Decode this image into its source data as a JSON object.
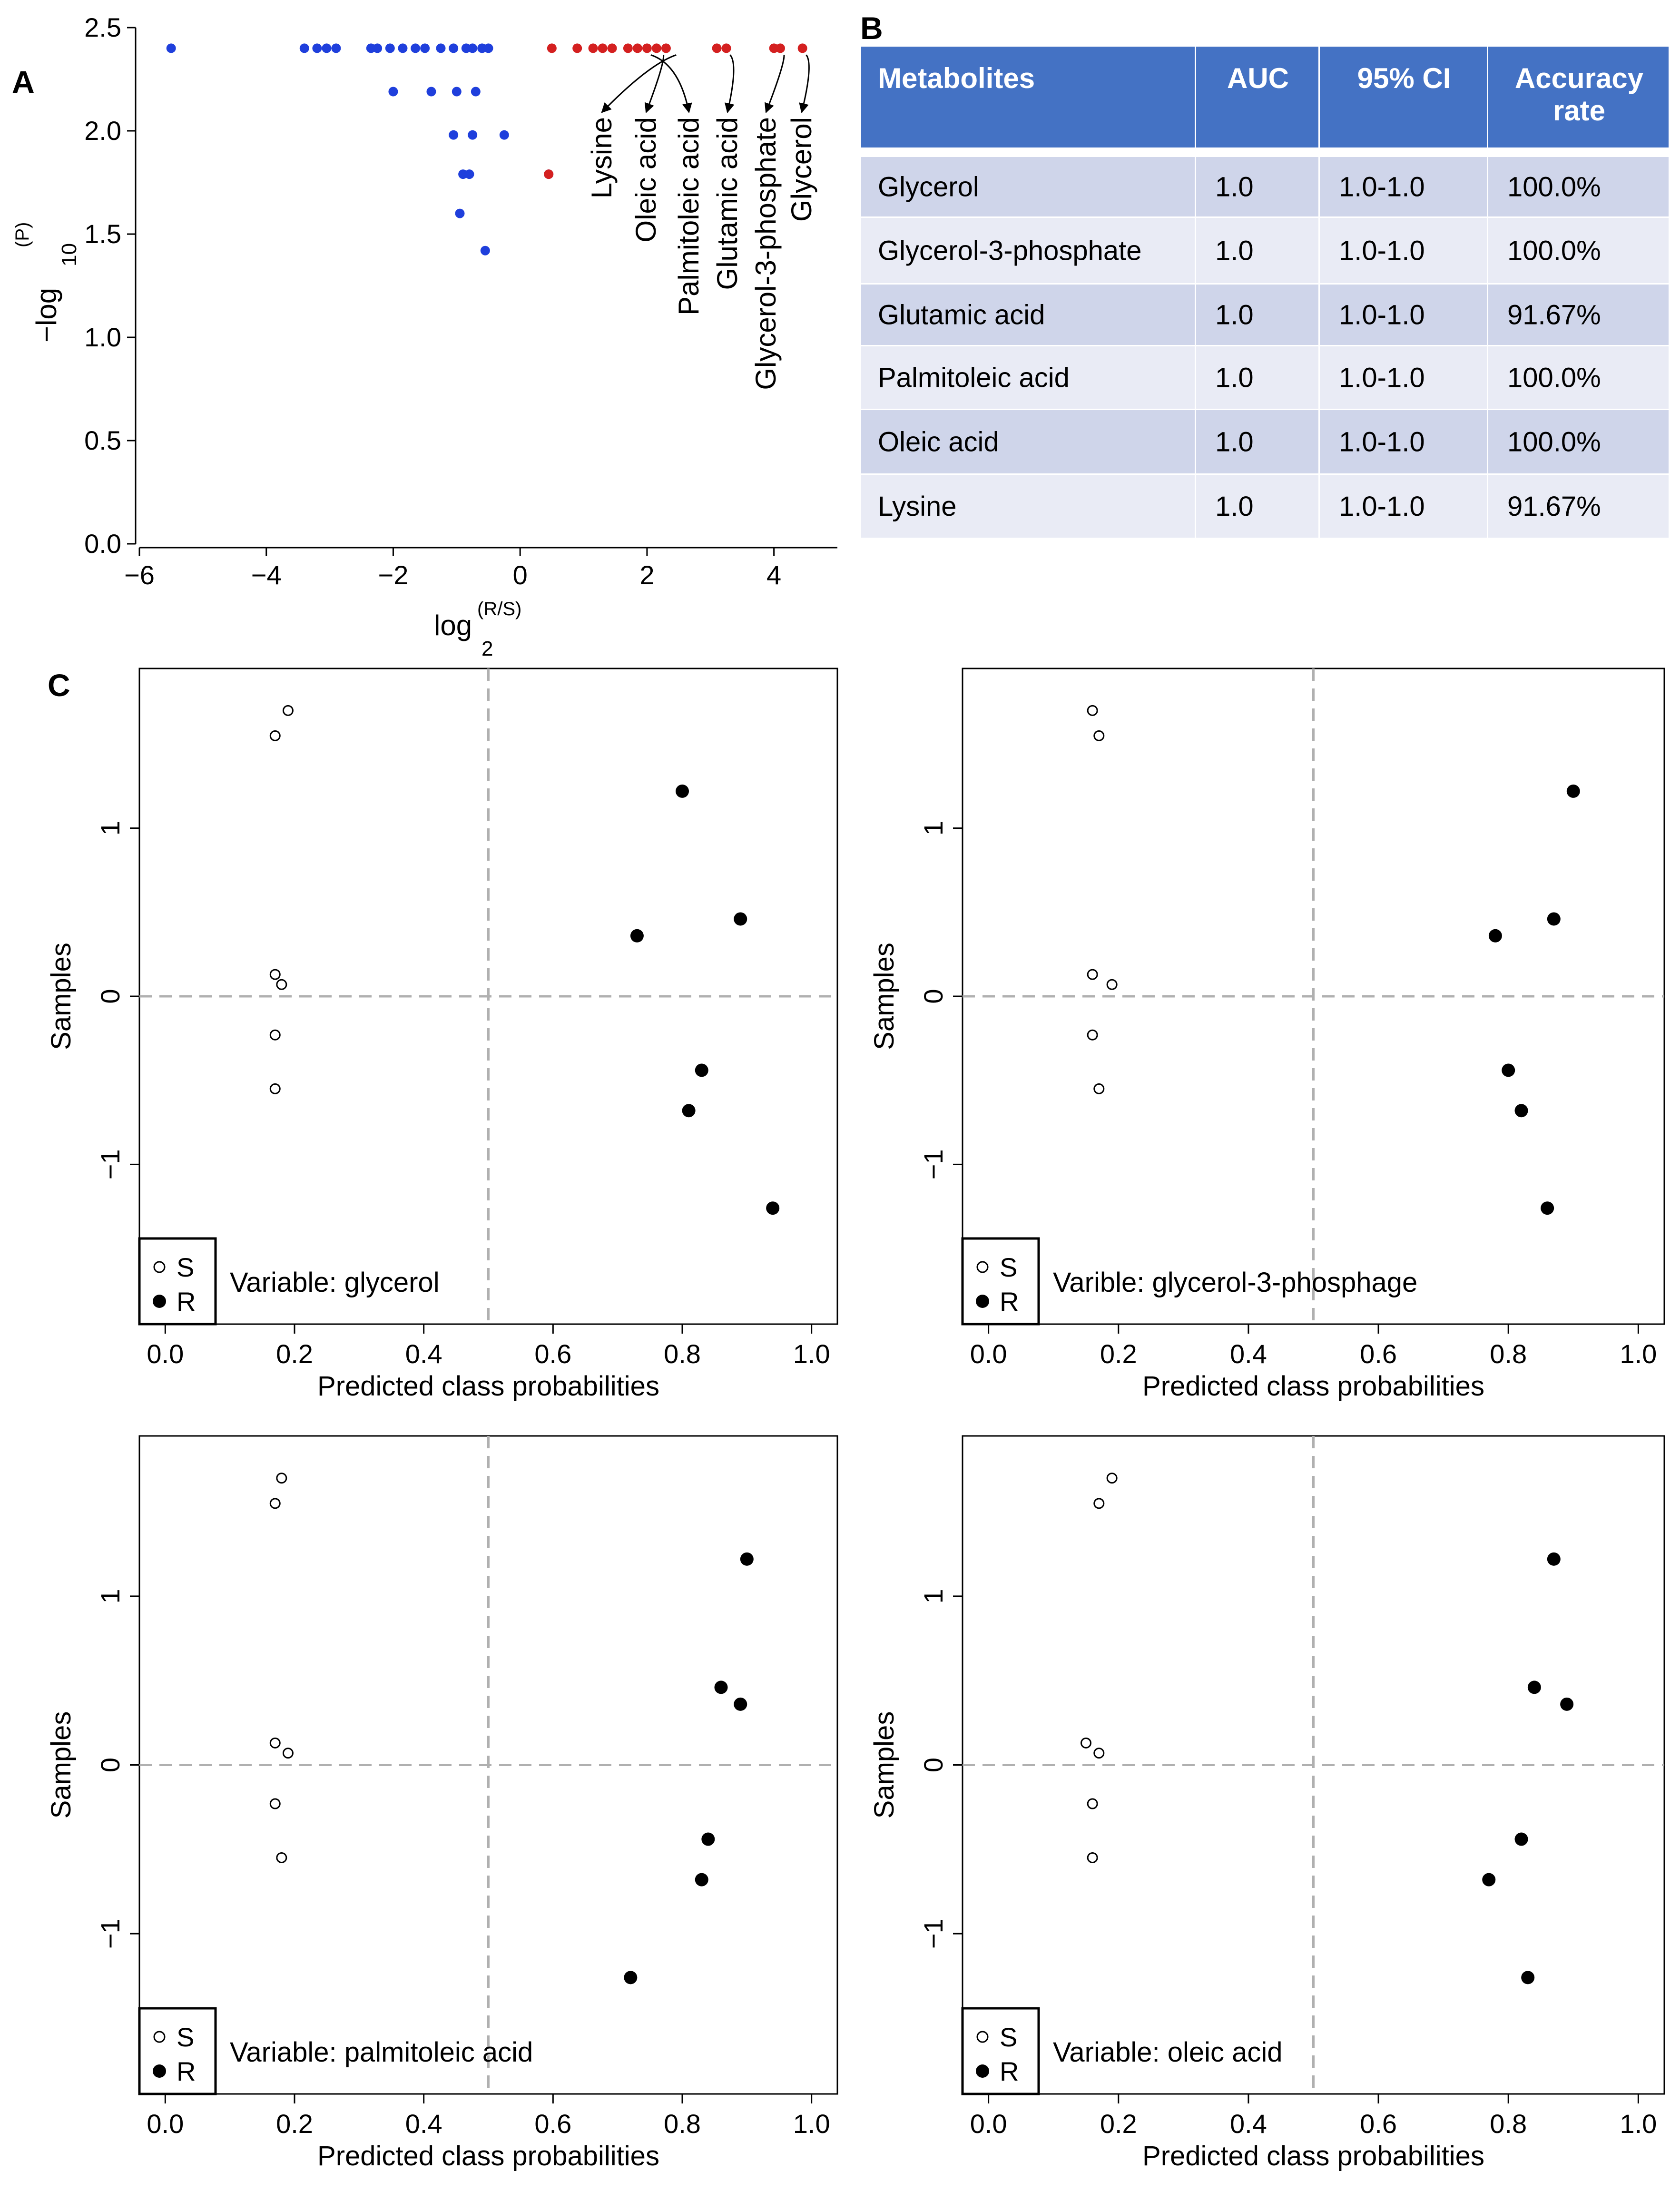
{
  "panel_labels": {
    "a": "A",
    "b": "B",
    "c": "C"
  },
  "chart_data": [
    {
      "id": "volcano",
      "type": "scatter",
      "title": "",
      "xlabel_main": "log",
      "xlabel_sub": "2",
      "xlabel_sup": "(R/S)",
      "ylabel_main": "−log",
      "ylabel_sub": "10",
      "ylabel_sup": "(P)",
      "xlim": [
        -6,
        5
      ],
      "ylim": [
        0,
        2.5
      ],
      "x_ticks": [
        -6,
        -4,
        -2,
        0,
        2,
        4
      ],
      "x_tick_labels": [
        "−6",
        "−4",
        "−2",
        "0",
        "2",
        "4"
      ],
      "y_ticks": [
        0,
        0.5,
        1.0,
        1.5,
        2.0,
        2.5
      ],
      "y_tick_labels": [
        "0.0",
        "0.5",
        "1.0",
        "1.5",
        "2.0",
        "2.5"
      ],
      "colors": {
        "down": "#1f3fdc",
        "up": "#d42020"
      },
      "series": [
        {
          "name": "down",
          "color": "#1f3fdc",
          "points": [
            [
              -5.5,
              2.4
            ],
            [
              -3.4,
              2.4
            ],
            [
              -3.2,
              2.4
            ],
            [
              -3.05,
              2.4
            ],
            [
              -2.9,
              2.4
            ],
            [
              -2.35,
              2.4
            ],
            [
              -2.25,
              2.4
            ],
            [
              -2.05,
              2.4
            ],
            [
              -1.85,
              2.4
            ],
            [
              -1.65,
              2.4
            ],
            [
              -1.5,
              2.4
            ],
            [
              -1.25,
              2.4
            ],
            [
              -1.05,
              2.4
            ],
            [
              -0.85,
              2.4
            ],
            [
              -0.75,
              2.4
            ],
            [
              -0.6,
              2.4
            ],
            [
              -0.5,
              2.4
            ],
            [
              -2.0,
              2.19
            ],
            [
              -1.4,
              2.19
            ],
            [
              -1.0,
              2.19
            ],
            [
              -0.7,
              2.19
            ],
            [
              -1.05,
              1.98
            ],
            [
              -0.75,
              1.98
            ],
            [
              -0.25,
              1.98
            ],
            [
              -0.9,
              1.79
            ],
            [
              -0.8,
              1.79
            ],
            [
              0.45,
              1.79
            ],
            [
              -0.95,
              1.6
            ],
            [
              -0.55,
              1.42
            ]
          ]
        },
        {
          "name": "up",
          "color": "#d42020",
          "points": [
            [
              0.5,
              2.4
            ],
            [
              0.9,
              2.4
            ],
            [
              1.15,
              2.4
            ],
            [
              1.3,
              2.4
            ],
            [
              1.45,
              2.4
            ],
            [
              1.7,
              2.4
            ],
            [
              1.85,
              2.4
            ],
            [
              2.0,
              2.4
            ],
            [
              2.15,
              2.4
            ],
            [
              2.3,
              2.4
            ],
            [
              3.1,
              2.4
            ],
            [
              3.25,
              2.4
            ],
            [
              4.0,
              2.4
            ],
            [
              4.1,
              2.4
            ],
            [
              4.45,
              2.4
            ],
            [
              0.45,
              1.79
            ]
          ]
        }
      ],
      "annotations": [
        {
          "text": "Lysine",
          "x": 2.4
        },
        {
          "text": "Oleic acid",
          "x": 2.2
        },
        {
          "text": "Palmitoleic acid",
          "x": 2.0
        },
        {
          "text": "Glutamic acid",
          "x": 3.25
        },
        {
          "text": "Glycerol-3-phosphate",
          "x": 4.1
        },
        {
          "text": "Glycerol",
          "x": 4.45
        }
      ]
    },
    {
      "id": "auc-table",
      "type": "table",
      "columns": [
        "Metabolites",
        "AUC",
        "95% CI",
        "Accuracy rate"
      ],
      "header_line1": [
        "Metabolites",
        "AUC",
        "95% CI",
        "Accuracy"
      ],
      "header_line2": [
        "",
        "",
        "",
        "rate"
      ],
      "rows": [
        [
          "Glycerol",
          "1.0",
          "1.0-1.0",
          "100.0%"
        ],
        [
          "Glycerol-3-phosphate",
          "1.0",
          "1.0-1.0",
          "100.0%"
        ],
        [
          "Glutamic acid",
          "1.0",
          "1.0-1.0",
          "91.67%"
        ],
        [
          "Palmitoleic acid",
          "1.0",
          "1.0-1.0",
          "100.0%"
        ],
        [
          "Oleic acid",
          "1.0",
          "1.0-1.0",
          "100.0%"
        ],
        [
          "Lysine",
          "1.0",
          "1.0-1.0",
          "91.67%"
        ]
      ],
      "colors": {
        "header": "#4472c4",
        "row_dark": "#cfd5ea",
        "row_light": "#e9ebf5"
      }
    },
    {
      "id": "prob-glycerol",
      "type": "scatter",
      "xlabel": "Predicted class probabilities",
      "ylabel": "Samples",
      "xlim": [
        -0.04,
        1.04
      ],
      "ylim": [
        -1.95,
        1.95
      ],
      "x_ticks": [
        0.0,
        0.2,
        0.4,
        0.6,
        0.8,
        1.0
      ],
      "x_tick_labels": [
        "0.0",
        "0.2",
        "0.4",
        "0.6",
        "0.8",
        "1.0"
      ],
      "y_ticks": [
        -1,
        0,
        1
      ],
      "y_tick_labels": [
        "−1",
        "0",
        "1"
      ],
      "vline": 0.5,
      "hline": 0,
      "legend": {
        "s_label": "S",
        "r_label": "R",
        "variable_text": "Variable: glycerol"
      },
      "series": [
        {
          "name": "S",
          "filled": false,
          "points": [
            [
              0.19,
              1.7
            ],
            [
              0.17,
              1.55
            ],
            [
              0.17,
              0.13
            ],
            [
              0.18,
              0.07
            ],
            [
              0.17,
              -0.23
            ],
            [
              0.17,
              -0.55
            ]
          ]
        },
        {
          "name": "R",
          "filled": true,
          "points": [
            [
              0.8,
              1.22
            ],
            [
              0.89,
              0.46
            ],
            [
              0.73,
              0.36
            ],
            [
              0.83,
              -0.44
            ],
            [
              0.81,
              -0.68
            ],
            [
              0.94,
              -1.26
            ]
          ]
        }
      ]
    },
    {
      "id": "prob-glycerol-3-phosphate",
      "type": "scatter",
      "xlabel": "Predicted class probabilities",
      "ylabel": "Samples",
      "xlim": [
        -0.04,
        1.04
      ],
      "ylim": [
        -1.95,
        1.95
      ],
      "x_ticks": [
        0.0,
        0.2,
        0.4,
        0.6,
        0.8,
        1.0
      ],
      "x_tick_labels": [
        "0.0",
        "0.2",
        "0.4",
        "0.6",
        "0.8",
        "1.0"
      ],
      "y_ticks": [
        -1,
        0,
        1
      ],
      "y_tick_labels": [
        "−1",
        "0",
        "1"
      ],
      "vline": 0.5,
      "hline": 0,
      "legend": {
        "s_label": "S",
        "r_label": "R",
        "variable_text": "Varible: glycerol-3-phosphage"
      },
      "series": [
        {
          "name": "S",
          "filled": false,
          "points": [
            [
              0.16,
              1.7
            ],
            [
              0.17,
              1.55
            ],
            [
              0.16,
              0.13
            ],
            [
              0.19,
              0.07
            ],
            [
              0.16,
              -0.23
            ],
            [
              0.17,
              -0.55
            ]
          ]
        },
        {
          "name": "R",
          "filled": true,
          "points": [
            [
              0.9,
              1.22
            ],
            [
              0.87,
              0.46
            ],
            [
              0.78,
              0.36
            ],
            [
              0.8,
              -0.44
            ],
            [
              0.82,
              -0.68
            ],
            [
              0.86,
              -1.26
            ]
          ]
        }
      ]
    },
    {
      "id": "prob-palmitoleic",
      "type": "scatter",
      "xlabel": "Predicted class probabilities",
      "ylabel": "Samples",
      "xlim": [
        -0.04,
        1.04
      ],
      "ylim": [
        -1.95,
        1.95
      ],
      "x_ticks": [
        0.0,
        0.2,
        0.4,
        0.6,
        0.8,
        1.0
      ],
      "x_tick_labels": [
        "0.0",
        "0.2",
        "0.4",
        "0.6",
        "0.8",
        "1.0"
      ],
      "y_ticks": [
        -1,
        0,
        1
      ],
      "y_tick_labels": [
        "−1",
        "0",
        "1"
      ],
      "vline": 0.5,
      "hline": 0,
      "legend": {
        "s_label": "S",
        "r_label": "R",
        "variable_text": "Variable: palmitoleic acid"
      },
      "series": [
        {
          "name": "S",
          "filled": false,
          "points": [
            [
              0.18,
              1.7
            ],
            [
              0.17,
              1.55
            ],
            [
              0.17,
              0.13
            ],
            [
              0.19,
              0.07
            ],
            [
              0.17,
              -0.23
            ],
            [
              0.18,
              -0.55
            ]
          ]
        },
        {
          "name": "R",
          "filled": true,
          "points": [
            [
              0.9,
              1.22
            ],
            [
              0.86,
              0.46
            ],
            [
              0.89,
              0.36
            ],
            [
              0.84,
              -0.44
            ],
            [
              0.83,
              -0.68
            ],
            [
              0.72,
              -1.26
            ]
          ]
        }
      ]
    },
    {
      "id": "prob-oleic",
      "type": "scatter",
      "xlabel": "Predicted class probabilities",
      "ylabel": "Samples",
      "xlim": [
        -0.04,
        1.04
      ],
      "ylim": [
        -1.95,
        1.95
      ],
      "x_ticks": [
        0.0,
        0.2,
        0.4,
        0.6,
        0.8,
        1.0
      ],
      "x_tick_labels": [
        "0.0",
        "0.2",
        "0.4",
        "0.6",
        "0.8",
        "1.0"
      ],
      "y_ticks": [
        -1,
        0,
        1
      ],
      "y_tick_labels": [
        "−1",
        "0",
        "1"
      ],
      "vline": 0.5,
      "hline": 0,
      "legend": {
        "s_label": "S",
        "r_label": "R",
        "variable_text": "Variable: oleic acid"
      },
      "series": [
        {
          "name": "S",
          "filled": false,
          "points": [
            [
              0.19,
              1.7
            ],
            [
              0.17,
              1.55
            ],
            [
              0.15,
              0.13
            ],
            [
              0.17,
              0.07
            ],
            [
              0.16,
              -0.23
            ],
            [
              0.16,
              -0.55
            ]
          ]
        },
        {
          "name": "R",
          "filled": true,
          "points": [
            [
              0.87,
              1.22
            ],
            [
              0.84,
              0.46
            ],
            [
              0.89,
              0.36
            ],
            [
              0.82,
              -0.44
            ],
            [
              0.77,
              -0.68
            ],
            [
              0.83,
              -1.26
            ]
          ]
        }
      ]
    }
  ]
}
